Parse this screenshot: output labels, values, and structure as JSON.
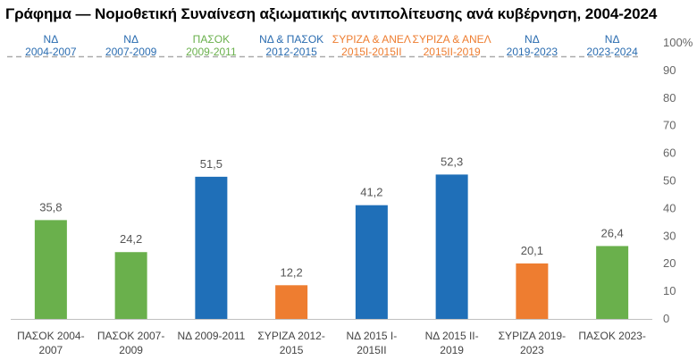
{
  "title": "Γράφημα — Νομοθετική Συναίνεση αξιωματικής αντιπολίτευσης ανά κυβέρνηση, 2004-2024",
  "colors": {
    "green": "#6ab04c",
    "blue": "#1f6fb8",
    "orange": "#ee7d30",
    "label_blue": "#2a6cb0",
    "label_green": "#6ab04c",
    "label_orange": "#ee7d30"
  },
  "governments": [
    {
      "line1": "ΝΔ",
      "line2": "2004-2007",
      "party": "blue"
    },
    {
      "line1": "ΝΔ",
      "line2": "2007-2009",
      "party": "blue"
    },
    {
      "line1": "ΠΑΣΟΚ",
      "line2": "2009-2011",
      "party": "green"
    },
    {
      "line1": "ΝΔ & ΠΑΣΟΚ",
      "line2": "2012-2015",
      "party": "blue"
    },
    {
      "line1": "ΣΥΡΙΖΑ & ΑΝΕΛ",
      "line2": "2015I-2015II",
      "party": "orange"
    },
    {
      "line1": "ΣΥΡΙΖΑ & ΑΝΕΛ",
      "line2": "2015II-2019",
      "party": "orange"
    },
    {
      "line1": "ΝΔ",
      "line2": "2019-2023",
      "party": "blue"
    },
    {
      "line1": "ΝΔ",
      "line2": "2023-2024",
      "party": "blue"
    }
  ],
  "chart_data": {
    "type": "bar",
    "title": "Γράφημα — Νομοθετική Συναίνεση αξιωματικής αντιπολίτευσης ανά κυβέρνηση, 2004-2024",
    "categories": [
      [
        "ΠΑΣΟΚ 2004-",
        "2007"
      ],
      [
        "ΠΑΣΟΚ 2007-",
        "2009"
      ],
      [
        "ΝΔ 2009-2011",
        ""
      ],
      [
        "ΣΥΡΙΖΑ 2012-",
        "2015"
      ],
      [
        "ΝΔ 2015 Ι-",
        "2015ΙΙ"
      ],
      [
        "ΝΔ 2015 ΙΙ-",
        "2019"
      ],
      [
        "ΣΥΡΙΖΑ 2019-",
        "2023"
      ],
      [
        "ΠΑΣΟΚ 2023-",
        ""
      ]
    ],
    "values": [
      35.8,
      24.2,
      51.5,
      12.2,
      41.2,
      52.3,
      20.1,
      26.4
    ],
    "value_labels": [
      "35,8",
      "24,2",
      "51,5",
      "12,2",
      "41,2",
      "52,3",
      "20,1",
      "26,4"
    ],
    "bar_colors": [
      "green",
      "green",
      "blue",
      "orange",
      "blue",
      "blue",
      "orange",
      "green"
    ],
    "ylim": [
      0,
      100
    ],
    "y_ticks": [
      "0",
      "10",
      "20",
      "30",
      "40",
      "50",
      "60",
      "70",
      "80",
      "90",
      "100%"
    ],
    "y_axis_side": "right",
    "reference_line": 95
  }
}
